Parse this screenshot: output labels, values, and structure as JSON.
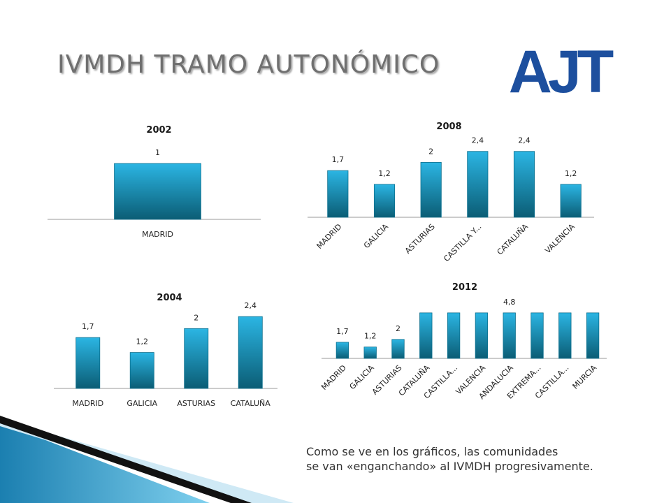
{
  "slide": {
    "title": "IVMDH TRAMO AUTONÓMICO",
    "logo_text": "AJT",
    "caption_lines": [
      "Como se ve en los gráficos, las comunidades",
      "se van «enganchando» al IVMDH progresivamente."
    ]
  },
  "colors": {
    "bar_top": "#2bb5e3",
    "bar_bottom": "#0b5d75",
    "logo": "#1d4f9e",
    "accent": "#1d8cbf"
  },
  "chart_data": [
    {
      "type": "bar",
      "title": "2002",
      "categories": [
        "MADRID"
      ],
      "values": [
        1
      ],
      "labels": [
        "1"
      ],
      "label_rotate": false,
      "ylim": [
        0,
        1.3
      ]
    },
    {
      "type": "bar",
      "title": "2008",
      "categories": [
        "MADRID",
        "GALICIA",
        "ASTURIAS",
        "CASTILLA Y...",
        "CATALUÑA",
        "VALENCIA"
      ],
      "values": [
        1.7,
        1.2,
        2,
        2.4,
        2.4,
        1.2
      ],
      "labels": [
        "1,7",
        "1,2",
        "2",
        "2,4",
        "2,4",
        "1,2"
      ],
      "label_rotate": true,
      "ylim": [
        0,
        2.8
      ]
    },
    {
      "type": "bar",
      "title": "2004",
      "categories": [
        "MADRID",
        "GALICIA",
        "ASTURIAS",
        "CATALUÑA"
      ],
      "values": [
        1.7,
        1.2,
        2,
        2.4
      ],
      "labels": [
        "1,7",
        "1,2",
        "2",
        "2,4"
      ],
      "label_rotate": false,
      "ylim": [
        0,
        2.8
      ]
    },
    {
      "type": "bar",
      "title": "2012",
      "categories": [
        "MADRID",
        "GALICIA",
        "ASTURIAS",
        "CATALUÑA",
        "CASTILLA...",
        "VALENCIA",
        "ANDALUCIA",
        "EXTREMA...",
        "CASTILLA...",
        "MURCIA"
      ],
      "values": [
        1.7,
        1.2,
        2,
        4.8,
        4.8,
        4.8,
        4.8,
        4.8,
        4.8,
        4.8
      ],
      "labels": [
        "1,7",
        "1,2",
        "2",
        "",
        "",
        "",
        "4,8",
        "",
        "",
        ""
      ],
      "label_rotate": true,
      "ylim": [
        0,
        5.6
      ]
    }
  ]
}
